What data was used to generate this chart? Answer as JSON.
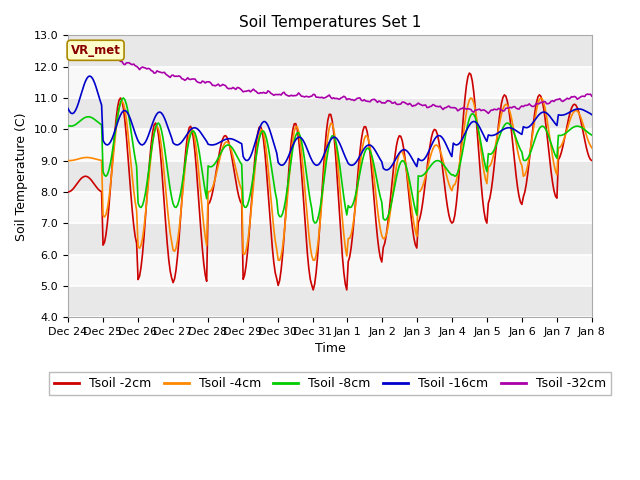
{
  "title": "Soil Temperatures Set 1",
  "xlabel": "Time",
  "ylabel": "Soil Temperature (C)",
  "ylim": [
    4.0,
    13.0
  ],
  "yticks": [
    4.0,
    5.0,
    6.0,
    7.0,
    8.0,
    9.0,
    10.0,
    11.0,
    12.0,
    13.0
  ],
  "bg_color": "#ffffff",
  "plot_bg_color": "#ffffff",
  "legend_labels": [
    "Tsoil -2cm",
    "Tsoil -4cm",
    "Tsoil -8cm",
    "Tsoil -16cm",
    "Tsoil -32cm"
  ],
  "legend_colors": [
    "#cc0000",
    "#ff8800",
    "#00cc00",
    "#0000cc",
    "#aa00aa"
  ],
  "vr_met_label": "VR_met",
  "xtick_labels": [
    "Dec 24",
    "Dec 25",
    "Dec 26",
    "Dec 27",
    "Dec 28",
    "Dec 29",
    "Dec 30",
    "Dec 31",
    "Jan 1",
    "Jan 2",
    "Jan 3",
    "Jan 4",
    "Jan 5",
    "Jan 6",
    "Jan 7",
    "Jan 8"
  ],
  "band_colors": [
    "#e8e8e8",
    "#f8f8f8"
  ],
  "title_fontsize": 11,
  "axis_label_fontsize": 9,
  "tick_fontsize": 8,
  "legend_fontsize": 9
}
